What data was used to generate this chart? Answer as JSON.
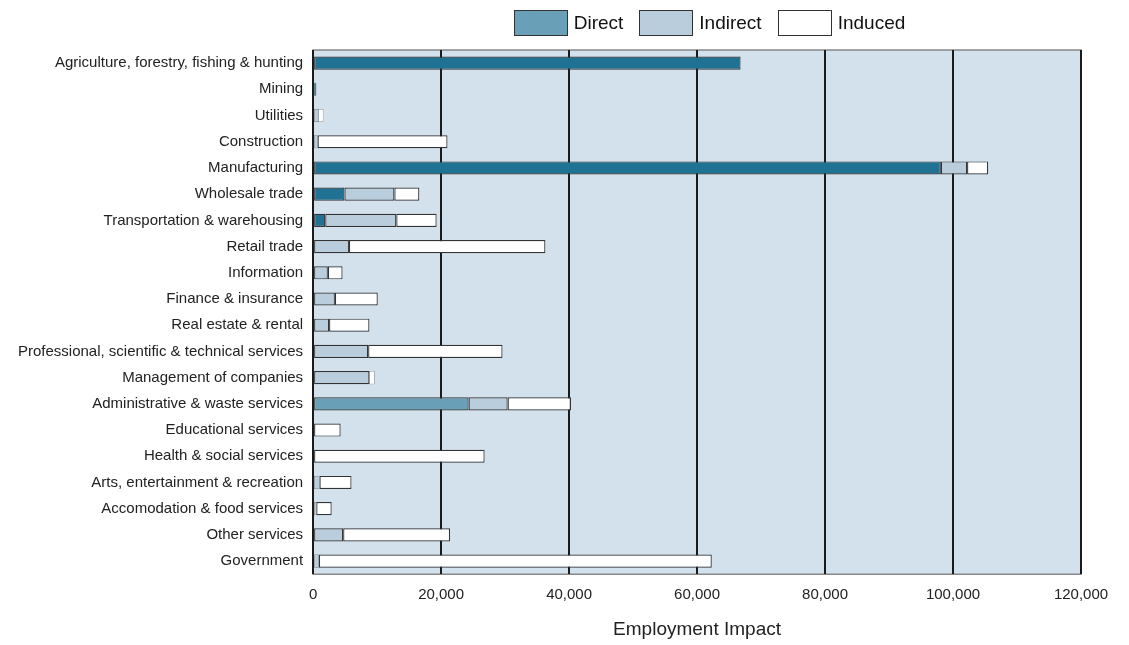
{
  "chart_data": {
    "type": "bar",
    "orientation": "horizontal",
    "stacked": true,
    "xlabel": "Employment Impact",
    "categories": [
      "Agriculture, forestry, fishing & hunting",
      "Mining",
      "Utilities",
      "Construction",
      "Manufacturing",
      "Wholesale trade",
      "Transportation & warehousing",
      "Retail trade",
      "Information",
      "Finance & insurance",
      "Real estate & rental",
      "Professional, scientific & technical services",
      "Management of companies",
      "Administrative & waste services",
      "Educational services",
      "Health & social services",
      "Arts, entertainment & recreation",
      "Accomodation & food services",
      "Other services",
      "Government"
    ],
    "series": [
      {
        "name": "Direct",
        "color": "#6a9fb8",
        "colors": [
          "#1f7293",
          "#1f7293",
          "#1f7293",
          "#1f7293",
          "#1f7293",
          "#1f7293",
          "#1f7293",
          "#1f7293",
          "#1f7293",
          "#1f7293",
          "#1f7293",
          "#1f7293",
          "#1f7293",
          "#6a9fb8",
          "#1f7293",
          "#1f7293",
          "#1f7293",
          "#1f7293",
          "#1f7293",
          "#1f7293"
        ],
        "values": [
          66800,
          500,
          0,
          0,
          98100,
          4900,
          1900,
          0,
          0,
          0,
          0,
          0,
          0,
          24300,
          0,
          0,
          0,
          0,
          0,
          0
        ]
      },
      {
        "name": "Indirect",
        "color": "#b9cddc",
        "values": [
          0,
          0,
          800,
          700,
          4100,
          7800,
          11100,
          5600,
          2300,
          3400,
          2500,
          8600,
          8800,
          6100,
          0,
          0,
          1000,
          500,
          4700,
          900
        ]
      },
      {
        "name": "Induced",
        "color": "#ffffff",
        "values": [
          0,
          0,
          800,
          20300,
          3300,
          3900,
          6300,
          30700,
          2300,
          6700,
          6300,
          21000,
          800,
          9900,
          4300,
          26800,
          5000,
          2400,
          16700,
          61400
        ]
      }
    ],
    "xlim": [
      0,
      120000
    ],
    "xticks": [
      0,
      {
        "value": 20000,
        "label": "20,000"
      },
      {
        "value": 40000,
        "label": "40,000"
      },
      {
        "value": 60000,
        "label": "60,000"
      },
      {
        "value": 80000,
        "label": "80,000"
      },
      {
        "value": 100000,
        "label": "100,000"
      },
      {
        "value": 120000,
        "label": "120,000"
      }
    ],
    "grid": "x",
    "legend": "top"
  }
}
